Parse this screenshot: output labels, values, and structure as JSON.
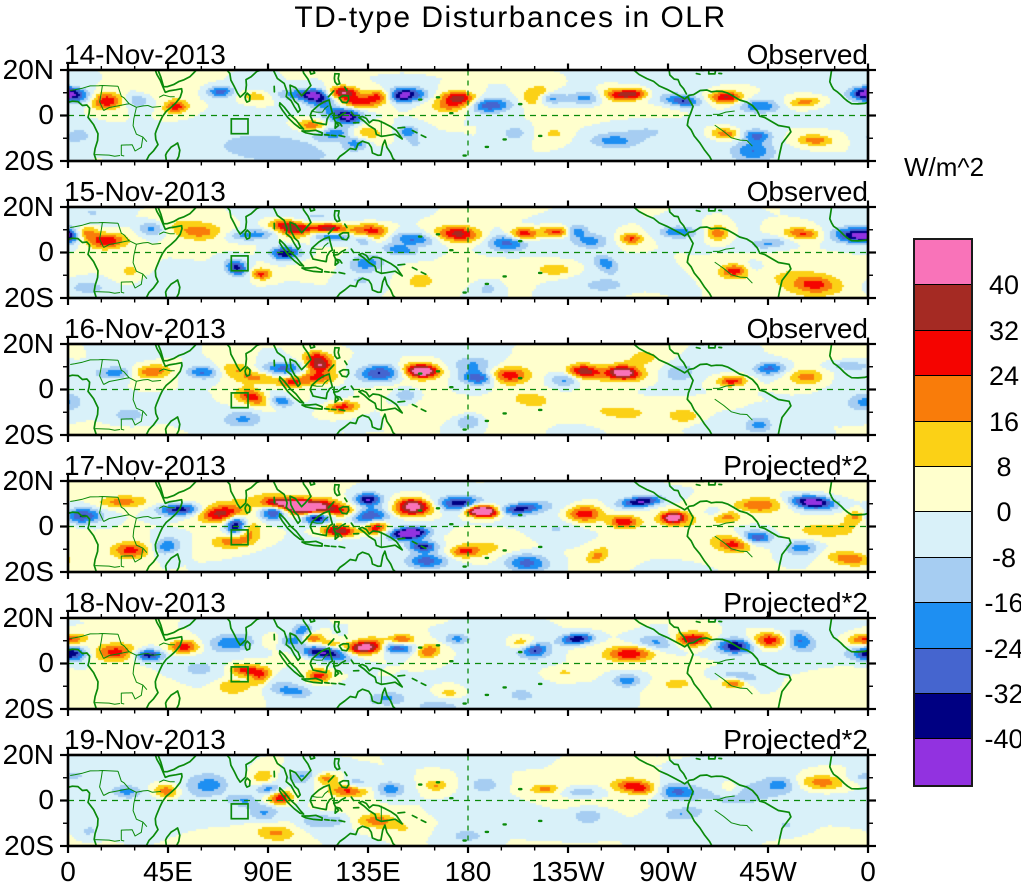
{
  "title": "TD-type Disturbances in OLR",
  "panels": [
    {
      "date": "14-Nov-2013",
      "source_label": "Observed"
    },
    {
      "date": "15-Nov-2013",
      "source_label": "Observed"
    },
    {
      "date": "16-Nov-2013",
      "source_label": "Observed"
    },
    {
      "date": "17-Nov-2013",
      "source_label": "Projected*2"
    },
    {
      "date": "18-Nov-2013",
      "source_label": "Projected*2"
    },
    {
      "date": "19-Nov-2013",
      "source_label": "Projected*2"
    }
  ],
  "y_axis": {
    "tick_labels": [
      "20N",
      "0",
      "20S"
    ]
  },
  "x_axis": {
    "tick_labels": [
      "0",
      "45E",
      "90E",
      "135E",
      "180",
      "135W",
      "90W",
      "45W",
      "0"
    ]
  },
  "colorbar": {
    "units_label": "W/m^2",
    "tick_labels": [
      "40",
      "32",
      "24",
      "16",
      "8",
      "0",
      "-8",
      "-16",
      "-24",
      "-32",
      "-40"
    ]
  },
  "chart_data": {
    "type": "heatmap",
    "title": "TD-type Disturbances in OLR",
    "units": "W/m^2",
    "panels": [
      {
        "date": "14-Nov-2013",
        "label": "Observed"
      },
      {
        "date": "15-Nov-2013",
        "label": "Observed"
      },
      {
        "date": "16-Nov-2013",
        "label": "Observed"
      },
      {
        "date": "17-Nov-2013",
        "label": "Projected*2"
      },
      {
        "date": "18-Nov-2013",
        "label": "Projected*2"
      },
      {
        "date": "19-Nov-2013",
        "label": "Projected*2"
      }
    ],
    "contour_levels_w_m2": [
      -40,
      -32,
      -24,
      -16,
      -8,
      0,
      8,
      16,
      24,
      32,
      40
    ],
    "palette_low_to_high": [
      "#9232e0",
      "#000082",
      "#4565cf",
      "#1e8ff2",
      "#a6cdf2",
      "#d9f1f9",
      "#ffffcd",
      "#fbd116",
      "#f97c0a",
      "#f50400",
      "#a52a23",
      "#f973b9"
    ],
    "lon_axis": {
      "range_deg": [
        0,
        360
      ],
      "tick_labels": [
        "0",
        "45E",
        "90E",
        "135E",
        "180",
        "135W",
        "90W",
        "45W",
        "0"
      ],
      "major_tick_step_deg": 45,
      "minor_tick_step_deg": 15
    },
    "lat_axis": {
      "range_deg": [
        -20,
        20
      ],
      "tick_labels": [
        "20S",
        "0",
        "20N"
      ],
      "major_ticks_deg": [
        -20,
        0,
        20
      ],
      "minor_ticks_deg": [
        -10,
        10
      ]
    },
    "reference_lines": {
      "equator": "dashed green",
      "dateline_180": "dashed green"
    },
    "highlight_box": {
      "lon_deg": [
        73.5,
        81
      ],
      "lat_deg": [
        -8,
        -1.5
      ],
      "style": "green outline square"
    },
    "map_overlay": "green coastlines and country borders, tropical strip 20S-20N, longitudes 0-360"
  }
}
